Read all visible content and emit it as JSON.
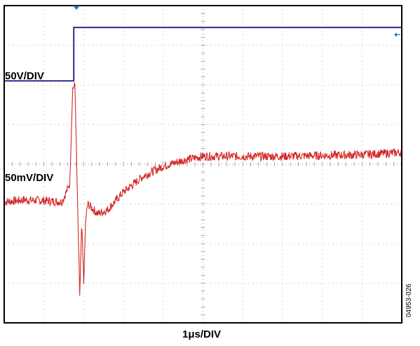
{
  "chart_data": {
    "type": "line",
    "title": "",
    "xlabel": "1μs/DIV",
    "ylabel": "",
    "grid": true,
    "x_divisions": 10,
    "y_divisions": 8,
    "xlim": [
      0,
      10
    ],
    "ylim": [
      -4,
      4
    ],
    "channel_labels": [
      "50V/DIV",
      "50mV/DIV"
    ],
    "figure_id": "04953-026",
    "colors": {
      "frame": "#000000",
      "grid": "#9a9a9a",
      "ch1": "#2b2b8c",
      "ch2": "#d42828",
      "marker": "#1e6fc2"
    },
    "series": [
      {
        "x": [
          0,
          1.75,
          1.75,
          10
        ],
        "y": [
          2.1,
          2.1,
          3.45,
          3.45
        ]
      },
      {
        "x": [
          0,
          0.5,
          1.0,
          1.45,
          1.65,
          1.72,
          1.78,
          1.85,
          1.9,
          1.95,
          2.0,
          2.05,
          2.1,
          2.2,
          2.35,
          2.6,
          3.0,
          3.5,
          4.0,
          4.5,
          5.0,
          6.0,
          7.0,
          8.0,
          9.0,
          10.0
        ],
        "y": [
          -0.95,
          -0.9,
          -0.92,
          -0.95,
          -0.5,
          1.9,
          2.0,
          -1.2,
          -3.3,
          -1.5,
          -3.0,
          -1.4,
          -1.0,
          -1.1,
          -1.25,
          -1.15,
          -0.7,
          -0.3,
          -0.05,
          0.1,
          0.2,
          0.2,
          0.2,
          0.22,
          0.24,
          0.3
        ]
      }
    ]
  }
}
